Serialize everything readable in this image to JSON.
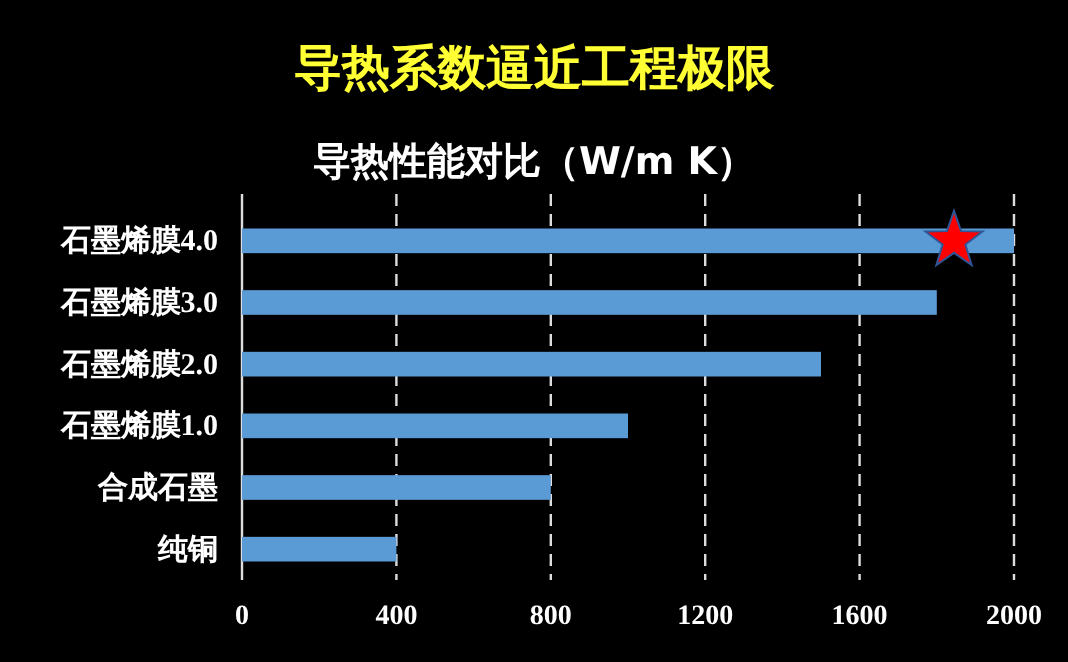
{
  "chart_data": {
    "type": "bar",
    "orientation": "horizontal",
    "title": "导热系数逼近工程极限",
    "subtitle": "导热性能对比（W/m K）",
    "categories": [
      "石墨烯膜4.0",
      "石墨烯膜3.0",
      "石墨烯膜2.0",
      "石墨烯膜1.0",
      "合成石墨",
      "纯铜"
    ],
    "values": [
      2000,
      1800,
      1500,
      1000,
      800,
      400
    ],
    "color": "#5b9bd5",
    "xlim": [
      0,
      2000
    ],
    "xticks": [
      0,
      400,
      800,
      1200,
      1600,
      2000
    ],
    "grid": "x"
  }
}
